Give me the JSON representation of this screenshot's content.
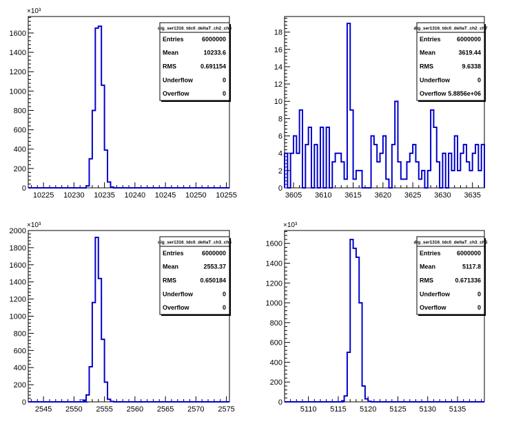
{
  "colors": {
    "histogram_line": "#0000cc",
    "axes": "#000000",
    "background": "#ffffff"
  },
  "chart_data": [
    {
      "type": "bar",
      "name": "dig_ser1316_tdc0_deltaT_ch2_ch8",
      "xlim": [
        10222.5,
        10255.5
      ],
      "ylim": [
        0,
        1770
      ],
      "y_exponent": "×10³",
      "xticks": [
        10225,
        10230,
        10235,
        10240,
        10245,
        10250,
        10255
      ],
      "yticks": [
        0,
        200,
        400,
        600,
        800,
        1000,
        1200,
        1400,
        1600
      ],
      "bins": [
        [
          10231.5,
          0
        ],
        [
          10232.0,
          20
        ],
        [
          10232.5,
          300
        ],
        [
          10233.0,
          800
        ],
        [
          10233.5,
          1650
        ],
        [
          10234.0,
          1670
        ],
        [
          10234.5,
          1060
        ],
        [
          10235.0,
          390
        ],
        [
          10235.5,
          60
        ],
        [
          10236.0,
          8
        ],
        [
          10236.5,
          0
        ]
      ],
      "stats": {
        "title": "dig_ser1316_tdc0_deltaT_ch2_ch8",
        "Entries": "6000000",
        "Mean": "10233.6",
        "RMS": "0.691154",
        "Underflow": "0",
        "Overflow": "0"
      }
    },
    {
      "type": "bar",
      "name": "dig_ser1316_tdc0_deltaT_ch2_ch7",
      "xlim": [
        3603.5,
        3637
      ],
      "ylim": [
        0,
        19.8
      ],
      "y_exponent": "",
      "xticks": [
        3605,
        3610,
        3615,
        3620,
        3625,
        3630,
        3635
      ],
      "yticks": [
        0,
        2,
        4,
        6,
        8,
        10,
        12,
        14,
        16,
        18
      ],
      "bins": [
        [
          3603.5,
          4
        ],
        [
          3604.0,
          0
        ],
        [
          3604.5,
          4
        ],
        [
          3605.0,
          6
        ],
        [
          3605.5,
          4
        ],
        [
          3606.0,
          9
        ],
        [
          3606.5,
          0
        ],
        [
          3607.0,
          5
        ],
        [
          3607.5,
          7
        ],
        [
          3608.0,
          0
        ],
        [
          3608.5,
          5
        ],
        [
          3609.0,
          0
        ],
        [
          3609.5,
          7
        ],
        [
          3610.0,
          0
        ],
        [
          3610.5,
          7
        ],
        [
          3611.0,
          0
        ],
        [
          3611.5,
          3
        ],
        [
          3612.0,
          4
        ],
        [
          3612.5,
          4
        ],
        [
          3613.0,
          3
        ],
        [
          3613.5,
          1
        ],
        [
          3614.0,
          19
        ],
        [
          3614.5,
          9
        ],
        [
          3615.0,
          1
        ],
        [
          3615.5,
          2
        ],
        [
          3616.0,
          2
        ],
        [
          3616.5,
          0
        ],
        [
          3617.0,
          0
        ],
        [
          3617.5,
          0
        ],
        [
          3618.0,
          6
        ],
        [
          3618.5,
          5
        ],
        [
          3619.0,
          3
        ],
        [
          3619.5,
          4
        ],
        [
          3620.0,
          6
        ],
        [
          3620.5,
          1
        ],
        [
          3621.0,
          0
        ],
        [
          3621.5,
          5
        ],
        [
          3622.0,
          10
        ],
        [
          3622.5,
          3
        ],
        [
          3623.0,
          1
        ],
        [
          3623.5,
          1
        ],
        [
          3624.0,
          3
        ],
        [
          3624.5,
          4
        ],
        [
          3625.0,
          5
        ],
        [
          3625.5,
          3
        ],
        [
          3626.0,
          1
        ],
        [
          3626.5,
          2
        ],
        [
          3627.0,
          0
        ],
        [
          3627.5,
          2
        ],
        [
          3628.0,
          9
        ],
        [
          3628.5,
          7
        ],
        [
          3629.0,
          3
        ],
        [
          3629.5,
          0
        ],
        [
          3630.0,
          4
        ],
        [
          3630.5,
          0
        ],
        [
          3631.0,
          4
        ],
        [
          3631.5,
          2
        ],
        [
          3632.0,
          6
        ],
        [
          3632.5,
          2
        ],
        [
          3633.0,
          4
        ],
        [
          3633.5,
          5
        ],
        [
          3634.0,
          3
        ],
        [
          3634.5,
          2
        ],
        [
          3635.0,
          4
        ],
        [
          3635.5,
          5
        ],
        [
          3636.0,
          2
        ],
        [
          3636.5,
          5
        ]
      ],
      "stats": {
        "title": "dig_ser1316_tdc0_deltaT_ch2_ch7",
        "Entries": "6000000",
        "Mean": "3619.44",
        "RMS": "9.6338",
        "Underflow": "0",
        "Overflow": "5.8856e+06"
      }
    },
    {
      "type": "bar",
      "name": "dig_ser1316_tdc0_deltaT_ch3_ch4",
      "xlim": [
        2542.5,
        2575.5
      ],
      "ylim": [
        0,
        2000
      ],
      "y_exponent": "×10³",
      "xticks": [
        2545,
        2550,
        2555,
        2560,
        2565,
        2570,
        2575
      ],
      "yticks": [
        0,
        200,
        400,
        600,
        800,
        1000,
        1200,
        1400,
        1600,
        1800,
        2000
      ],
      "bins": [
        [
          2551.5,
          0
        ],
        [
          2551.0,
          0
        ],
        [
          2551.5,
          20
        ],
        [
          2552.0,
          80
        ],
        [
          2552.5,
          410
        ],
        [
          2553.0,
          1160
        ],
        [
          2553.5,
          1920
        ],
        [
          2554.0,
          1440
        ],
        [
          2554.5,
          730
        ],
        [
          2555.0,
          230
        ],
        [
          2555.5,
          30
        ],
        [
          2556.0,
          5
        ],
        [
          2556.5,
          0
        ]
      ],
      "stats": {
        "title": "dig_ser1316_tdc0_deltaT_ch3_ch4",
        "Entries": "6000000",
        "Mean": "2553.37",
        "RMS": "0.650184",
        "Underflow": "0",
        "Overflow": "0"
      }
    },
    {
      "type": "bar",
      "name": "dig_ser1316_tdc0_deltaT_ch3_ch5",
      "xlim": [
        5106,
        5139.5
      ],
      "ylim": [
        0,
        1730
      ],
      "y_exponent": "×10³",
      "xticks": [
        5110,
        5115,
        5120,
        5125,
        5130,
        5135
      ],
      "yticks": [
        0,
        200,
        400,
        600,
        800,
        1000,
        1200,
        1400,
        1600
      ],
      "bins": [
        [
          5115.5,
          0
        ],
        [
          5115.5,
          10
        ],
        [
          5116.0,
          60
        ],
        [
          5116.5,
          500
        ],
        [
          5117.0,
          1640
        ],
        [
          5117.5,
          1550
        ],
        [
          5118.0,
          1460
        ],
        [
          5118.5,
          1000
        ],
        [
          5119.0,
          160
        ],
        [
          5119.5,
          30
        ],
        [
          5120.0,
          5
        ],
        [
          5120.5,
          0
        ]
      ],
      "stats": {
        "title": "dig_ser1316_tdc0_deltaT_ch3_ch5",
        "Entries": "6000000",
        "Mean": "5117.8",
        "RMS": "0.671336",
        "Underflow": "0",
        "Overflow": "0"
      }
    }
  ]
}
